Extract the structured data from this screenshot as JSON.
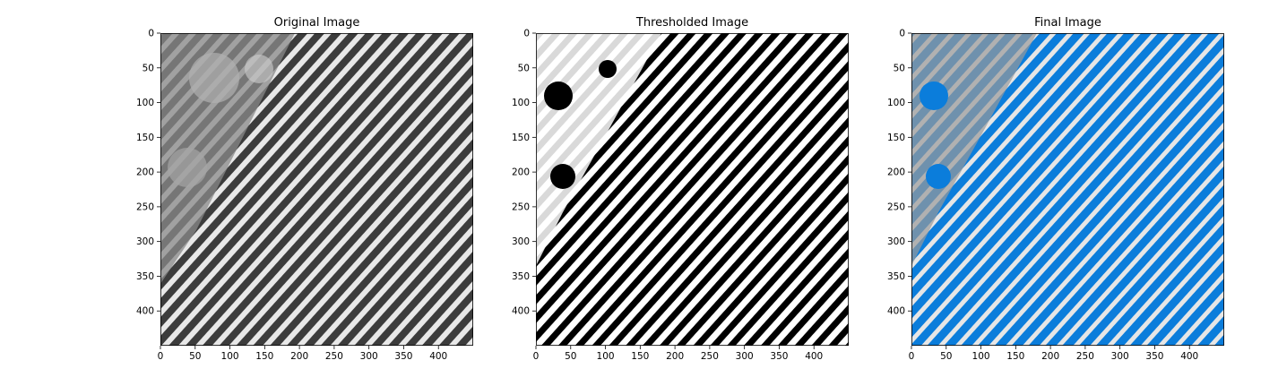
{
  "figure": {
    "panels": [
      {
        "title": "Original Image",
        "kind": "grayscale",
        "x_ticks": [
          "0",
          "50",
          "100",
          "150",
          "200",
          "250",
          "300",
          "350",
          "400"
        ],
        "y_ticks": [
          "0",
          "50",
          "100",
          "150",
          "200",
          "250",
          "300",
          "350",
          "400"
        ]
      },
      {
        "title": "Thresholded Image",
        "kind": "binary",
        "x_ticks": [
          "0",
          "50",
          "100",
          "150",
          "200",
          "250",
          "300",
          "350",
          "400"
        ],
        "y_ticks": [
          "0",
          "50",
          "100",
          "150",
          "200",
          "250",
          "300",
          "350",
          "400"
        ]
      },
      {
        "title": "Final Image",
        "kind": "overlay",
        "overlay_color": "#0b7ddb",
        "x_ticks": [
          "0",
          "50",
          "100",
          "150",
          "200",
          "250",
          "300",
          "350",
          "400"
        ],
        "y_ticks": [
          "0",
          "50",
          "100",
          "150",
          "200",
          "250",
          "300",
          "350",
          "400"
        ]
      }
    ],
    "image_extent": [
      0,
      450
    ]
  }
}
